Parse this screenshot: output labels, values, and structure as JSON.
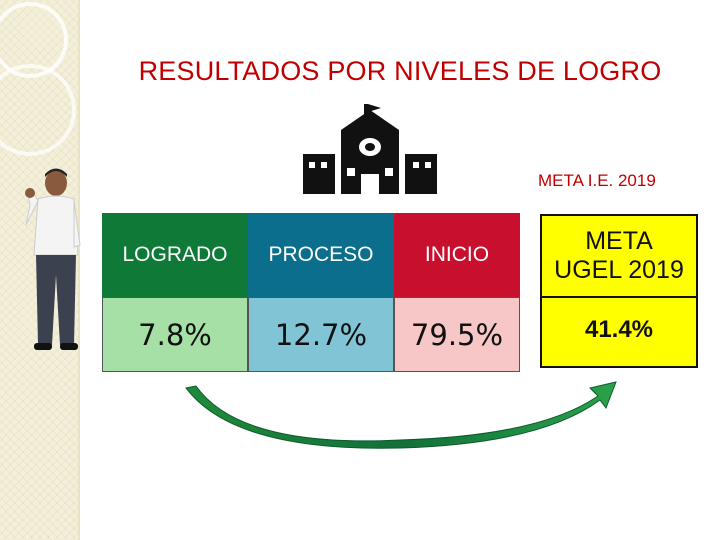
{
  "title": "RESULTADOS POR NIVELES DE LOGRO",
  "meta_ie_label": "META I.E. 2019",
  "levels": [
    {
      "label": "LOGRADO",
      "value": "7.8%",
      "header_color": "#0f7a37",
      "value_color": "#a6e0a6"
    },
    {
      "label": "PROCESO",
      "value": "12.7%",
      "header_color": "#0b6e8c",
      "value_color": "#80c4d6"
    },
    {
      "label": "INICIO",
      "value": "79.5%",
      "header_color": "#c8102e",
      "value_color": "#f7c6c6"
    }
  ],
  "meta_ugel": {
    "label_line1": "META",
    "label_line2": "UGEL 2019",
    "value": "41.4%",
    "color": "#ffff00"
  },
  "icons": {
    "building": "school-building-icon",
    "arrow": "curved-green-arrow",
    "person": "student-thumbs-up"
  }
}
